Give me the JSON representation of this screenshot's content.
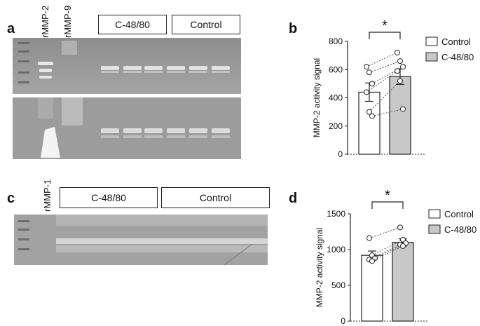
{
  "panels": {
    "a": "a",
    "b": "b",
    "c": "c",
    "d": "d"
  },
  "gels": {
    "top": {
      "lane_labels": [
        "rMMP-2",
        "rMMP-9"
      ],
      "groups": [
        "C-48/80",
        "Control"
      ]
    },
    "bottom": {
      "lane_labels": [
        "rMMP-1"
      ],
      "groups": [
        "C-48/80",
        "Control"
      ]
    }
  },
  "colors": {
    "control_bar": "#ffffff",
    "c4880_bar": "#c8c8c8",
    "gel_background": "#9a9a9a"
  },
  "chart_data": [
    {
      "type": "bar",
      "panel": "b",
      "categories": [
        "Control",
        "C-48/80"
      ],
      "values": [
        440,
        550
      ],
      "error": [
        65,
        55
      ],
      "ylabel": "MMP-2 activity signal",
      "ylim": [
        0,
        800
      ],
      "yticks": [
        0,
        200,
        400,
        600,
        800
      ],
      "significance": "*",
      "legend": [
        "Control",
        "C-48/80"
      ],
      "legend_position": "right",
      "paired_points": [
        [
          620,
          720
        ],
        [
          580,
          660
        ],
        [
          500,
          620
        ],
        [
          440,
          590
        ],
        [
          300,
          520
        ],
        [
          270,
          320
        ]
      ]
    },
    {
      "type": "bar",
      "panel": "d",
      "categories": [
        "Control",
        "C-48/80"
      ],
      "values": [
        920,
        1100
      ],
      "error": [
        60,
        50
      ],
      "ylabel": "MMP-2 activity signal",
      "ylim": [
        0,
        1500
      ],
      "yticks": [
        0,
        500,
        1000,
        1500
      ],
      "significance": "*",
      "legend": [
        "Control",
        "C-48/80"
      ],
      "legend_position": "right",
      "paired_points": [
        [
          1160,
          1310
        ],
        [
          920,
          1140
        ],
        [
          880,
          1090
        ],
        [
          860,
          1070
        ],
        [
          840,
          1050
        ]
      ]
    }
  ]
}
